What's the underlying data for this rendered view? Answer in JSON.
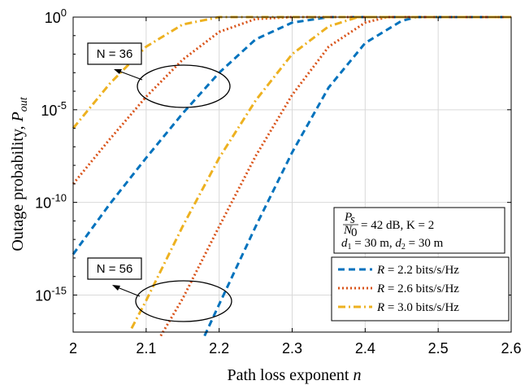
{
  "chart_data": {
    "type": "line",
    "xlabel_main": "Path loss exponent",
    "xlabel_var": "n",
    "ylabel_main": "Outage probability,",
    "ylabel_var": "P",
    "ylabel_sub": "out",
    "xlim": [
      2,
      2.6
    ],
    "ylim_log10": [
      -17,
      0
    ],
    "yscale": "log",
    "grid": true,
    "x_ticks": [
      "2",
      "2.1",
      "2.2",
      "2.3",
      "2.4",
      "2.5",
      "2.6"
    ],
    "y_ticks": [
      {
        "value": 0,
        "base": "10",
        "exp": "0"
      },
      {
        "value": -5,
        "base": "10",
        "exp": "-5"
      },
      {
        "value": -10,
        "base": "10",
        "exp": "-10"
      },
      {
        "value": -15,
        "base": "10",
        "exp": "-15"
      }
    ],
    "series": [
      {
        "name": "R = 2.2 bits/s/Hz",
        "group": "N = 36",
        "color": "#0072BD",
        "dash": "dashed",
        "points": [
          [
            2.0,
            -12.8
          ],
          [
            2.05,
            -10.1
          ],
          [
            2.1,
            -7.6
          ],
          [
            2.15,
            -5.2
          ],
          [
            2.2,
            -3.0
          ],
          [
            2.25,
            -1.2
          ],
          [
            2.3,
            -0.3
          ],
          [
            2.35,
            0
          ],
          [
            2.6,
            0
          ]
        ]
      },
      {
        "name": "R = 2.6 bits/s/Hz",
        "group": "N = 36",
        "color": "#D95319",
        "dash": "dotted",
        "points": [
          [
            2.0,
            -9.0
          ],
          [
            2.05,
            -6.6
          ],
          [
            2.1,
            -4.3
          ],
          [
            2.15,
            -2.3
          ],
          [
            2.2,
            -0.8
          ],
          [
            2.25,
            -0.1
          ],
          [
            2.3,
            0
          ],
          [
            2.6,
            0
          ]
        ]
      },
      {
        "name": "R = 3.0 bits/s/Hz",
        "group": "N = 36",
        "color": "#EDB120",
        "dash": "dashdot",
        "points": [
          [
            2.0,
            -6.0
          ],
          [
            2.05,
            -3.6
          ],
          [
            2.1,
            -1.6
          ],
          [
            2.15,
            -0.4
          ],
          [
            2.2,
            0
          ],
          [
            2.6,
            0
          ]
        ]
      },
      {
        "name": "R = 2.2 bits/s/Hz",
        "group": "N = 56",
        "color": "#0072BD",
        "dash": "dashed",
        "points": [
          [
            2.18,
            -17.2
          ],
          [
            2.2,
            -15.5
          ],
          [
            2.25,
            -11.3
          ],
          [
            2.3,
            -7.3
          ],
          [
            2.35,
            -3.8
          ],
          [
            2.4,
            -1.4
          ],
          [
            2.45,
            -0.2
          ],
          [
            2.47,
            0
          ],
          [
            2.6,
            0
          ]
        ]
      },
      {
        "name": "R = 2.6 bits/s/Hz",
        "group": "N = 56",
        "color": "#D95319",
        "dash": "dotted",
        "points": [
          [
            2.12,
            -17.2
          ],
          [
            2.15,
            -15.2
          ],
          [
            2.2,
            -11.3
          ],
          [
            2.25,
            -7.5
          ],
          [
            2.3,
            -4.2
          ],
          [
            2.35,
            -1.6
          ],
          [
            2.4,
            -0.3
          ],
          [
            2.43,
            0
          ],
          [
            2.6,
            0
          ]
        ]
      },
      {
        "name": "R = 3.0 bits/s/Hz",
        "group": "N = 56",
        "color": "#EDB120",
        "dash": "dashdot",
        "points": [
          [
            2.08,
            -16.8
          ],
          [
            2.1,
            -15.3
          ],
          [
            2.15,
            -11.3
          ],
          [
            2.2,
            -7.6
          ],
          [
            2.25,
            -4.5
          ],
          [
            2.3,
            -2.0
          ],
          [
            2.35,
            -0.5
          ],
          [
            2.39,
            0
          ],
          [
            2.6,
            0
          ]
        ]
      }
    ],
    "legend": {
      "placement": "bottom-right",
      "entries": [
        {
          "var": "R",
          "text": " = 2.2 bits/s/Hz",
          "color": "#0072BD",
          "dash": "dashed"
        },
        {
          "var": "R",
          "text": " = 2.6 bits/s/Hz",
          "color": "#D95319",
          "dash": "dotted"
        },
        {
          "var": "R",
          "text": " = 3.0 bits/s/Hz",
          "color": "#EDB120",
          "dash": "dashdot"
        }
      ]
    },
    "info_box": {
      "frac_num": "P",
      "frac_num_sub": "s",
      "frac_den": "N",
      "frac_den_sub": "0",
      "line1_rest": " = 42 dB, K = 2",
      "line2": "d1 = 30 m, d2 = 30 m",
      "line2_parts": [
        "d",
        "1",
        " = 30 m, ",
        "d",
        "2",
        " = 30 m"
      ]
    },
    "annotations": [
      {
        "label": "N = 36",
        "ellipse_center": [
          2.16,
          -3.6
        ],
        "points_to": "upper curve group"
      },
      {
        "label": "N = 56",
        "ellipse_center": [
          2.16,
          -14.7
        ],
        "points_to": "lower curve group"
      }
    ]
  }
}
